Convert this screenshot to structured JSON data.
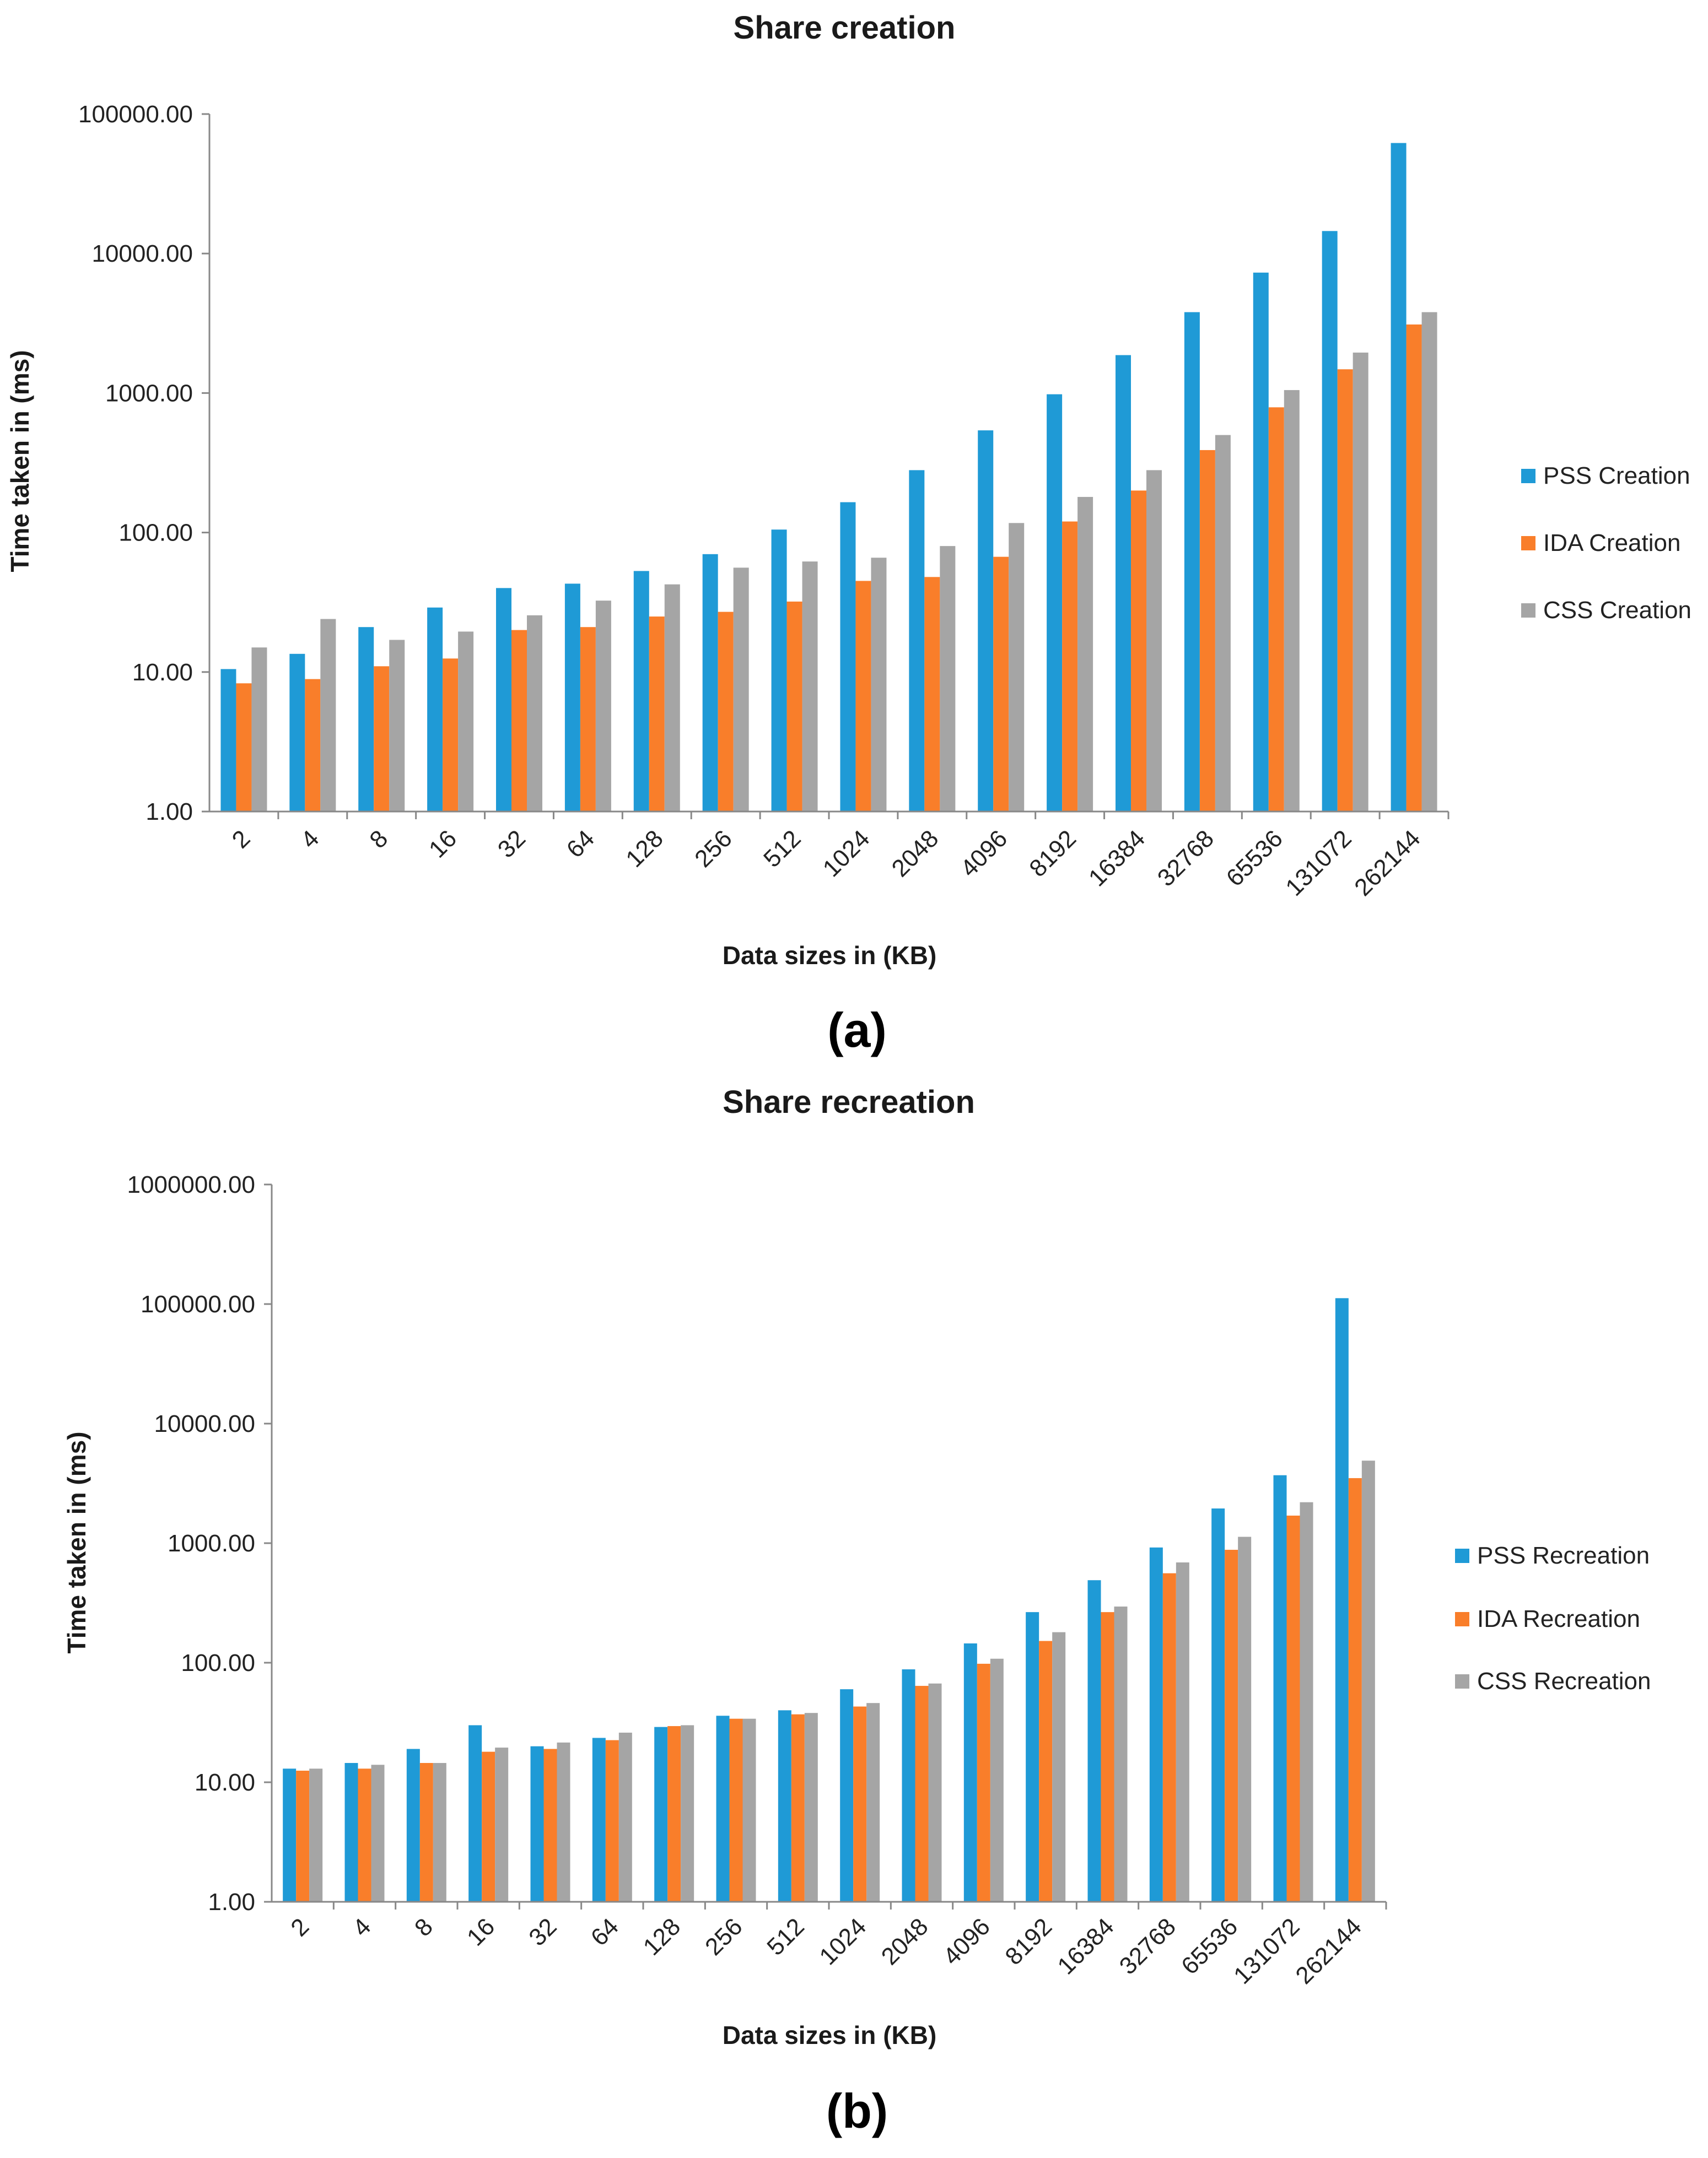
{
  "chart_data": [
    {
      "type": "bar",
      "title": "Share creation",
      "xlabel": "Data sizes in (KB)",
      "ylabel": "Time taken in (ms)",
      "yscale": "log",
      "ylim": [
        1,
        100000
      ],
      "yticks": [
        "1.00",
        "10.00",
        "100.00",
        "1000.00",
        "10000.00",
        "100000.00"
      ],
      "categories": [
        "2",
        "4",
        "8",
        "16",
        "32",
        "64",
        "128",
        "256",
        "512",
        "1024",
        "2048",
        "4096",
        "8192",
        "16384",
        "32768",
        "65536",
        "131072",
        "262144"
      ],
      "series": [
        {
          "name": "PSS Creation",
          "color": "#1F9AD6",
          "values": [
            10.5,
            13.5,
            21,
            29,
            40,
            43,
            53,
            70,
            105,
            165,
            280,
            540,
            980,
            1870,
            3800,
            7300,
            14500,
            62000
          ]
        },
        {
          "name": "IDA Creation",
          "color": "#F97E2A",
          "values": [
            8.3,
            8.9,
            11,
            12.5,
            20,
            21,
            25,
            27,
            32,
            45,
            48,
            67,
            120,
            200,
            390,
            790,
            1480,
            3100
          ]
        },
        {
          "name": "CSS Creation",
          "color": "#A5A5A5",
          "values": [
            15,
            24,
            17,
            19.5,
            25.5,
            32.5,
            42.5,
            56,
            62,
            66,
            80,
            117,
            180,
            280,
            500,
            1050,
            1950,
            3800
          ]
        }
      ],
      "legend_position": "right",
      "panel_label": "(a)"
    },
    {
      "type": "bar",
      "title": "Share recreation",
      "xlabel": "Data sizes in (KB)",
      "ylabel": "Time taken in (ms)",
      "yscale": "log",
      "ylim": [
        1,
        1000000
      ],
      "yticks": [
        "1.00",
        "10.00",
        "100.00",
        "1000.00",
        "10000.00",
        "100000.00",
        "1000000.00"
      ],
      "categories": [
        "2",
        "4",
        "8",
        "16",
        "32",
        "64",
        "128",
        "256",
        "512",
        "1024",
        "2048",
        "4096",
        "8192",
        "16384",
        "32768",
        "65536",
        "131072",
        "262144"
      ],
      "series": [
        {
          "name": "PSS Recreation",
          "color": "#1F9AD6",
          "values": [
            13,
            14.5,
            19,
            30,
            20,
            23.5,
            29,
            36,
            40,
            60,
            88,
            145,
            265,
            490,
            920,
            1950,
            3700,
            112000
          ]
        },
        {
          "name": "IDA Recreation",
          "color": "#F97E2A",
          "values": [
            12.5,
            13,
            14.5,
            18,
            19,
            22.5,
            29.5,
            34,
            37,
            43,
            64,
            98,
            152,
            265,
            560,
            880,
            1700,
            3500
          ]
        },
        {
          "name": "CSS Recreation",
          "color": "#A5A5A5",
          "values": [
            13,
            14,
            14.5,
            19.5,
            21.5,
            26,
            30,
            34,
            38,
            46,
            67,
            108,
            180,
            295,
            690,
            1130,
            2200,
            4900
          ]
        }
      ],
      "legend_position": "right",
      "panel_label": "(b)"
    }
  ]
}
